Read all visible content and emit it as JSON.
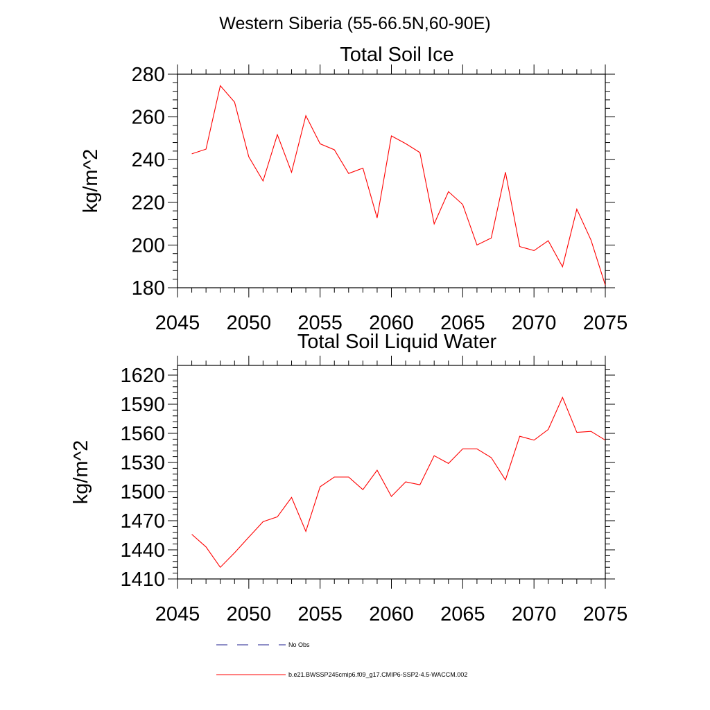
{
  "figure": {
    "title": "Western Siberia (55-66.5N,60-90E)",
    "legend": [
      {
        "label": "No Obs",
        "color": "#1f1f8f",
        "style": "dashed"
      },
      {
        "label": "b.e21.BWSSP245cmip6.f09_g17.CMIP6-SSP2-4.5-WACCM.002",
        "color": "#ff0000",
        "style": "solid"
      }
    ]
  },
  "chart_data": [
    {
      "type": "line",
      "title": "Total Soil Ice",
      "xlabel": "",
      "ylabel": "kg/m^2",
      "xlim": [
        2045,
        2075
      ],
      "ylim": [
        180,
        280
      ],
      "xticks": [
        2045,
        2050,
        2055,
        2060,
        2065,
        2070,
        2075
      ],
      "yticks": [
        180,
        200,
        220,
        240,
        260,
        280
      ],
      "grid": false,
      "series": [
        {
          "color": "#ff0000",
          "x": [
            2046,
            2047,
            2048,
            2049,
            2050,
            2051,
            2052,
            2053,
            2054,
            2055,
            2056,
            2057,
            2058,
            2059,
            2060,
            2061,
            2062,
            2063,
            2064,
            2065,
            2066,
            2067,
            2068,
            2069,
            2070,
            2071,
            2072,
            2073,
            2074,
            2075
          ],
          "values": [
            242.7,
            244.9,
            274.6,
            266.9,
            241.3,
            230.0,
            251.7,
            234.1,
            260.6,
            247.4,
            244.6,
            233.5,
            236.0,
            212.7,
            251.1,
            247.5,
            243.3,
            209.9,
            225.0,
            219.0,
            200.0,
            203.3,
            234.1,
            199.3,
            197.4,
            202.0,
            189.8,
            216.8,
            202.3,
            181.2
          ]
        }
      ]
    },
    {
      "type": "line",
      "title": "Total Soil Liquid Water",
      "xlabel": "",
      "ylabel": "kg/m^2",
      "xlim": [
        2045,
        2075
      ],
      "ylim": [
        1410,
        1630
      ],
      "xticks": [
        2045,
        2050,
        2055,
        2060,
        2065,
        2070,
        2075
      ],
      "yticks": [
        1410,
        1440,
        1470,
        1500,
        1530,
        1560,
        1590,
        1620
      ],
      "grid": false,
      "series": [
        {
          "color": "#ff0000",
          "x": [
            2046,
            2047,
            2048,
            2049,
            2050,
            2051,
            2052,
            2053,
            2054,
            2055,
            2056,
            2057,
            2058,
            2059,
            2060,
            2061,
            2062,
            2063,
            2064,
            2065,
            2066,
            2067,
            2068,
            2069,
            2070,
            2071,
            2072,
            2073,
            2074,
            2075
          ],
          "values": [
            1456.0,
            1443.0,
            1422.0,
            1437.0,
            1453.0,
            1469.0,
            1474.0,
            1494.0,
            1459.0,
            1505.0,
            1515.0,
            1515.0,
            1502.0,
            1522.0,
            1495.0,
            1510.0,
            1507.0,
            1537.0,
            1529.0,
            1544.0,
            1544.0,
            1535.0,
            1512.0,
            1557.0,
            1553.0,
            1564.0,
            1597.0,
            1561.0,
            1562.0,
            1553.0
          ]
        }
      ]
    }
  ]
}
